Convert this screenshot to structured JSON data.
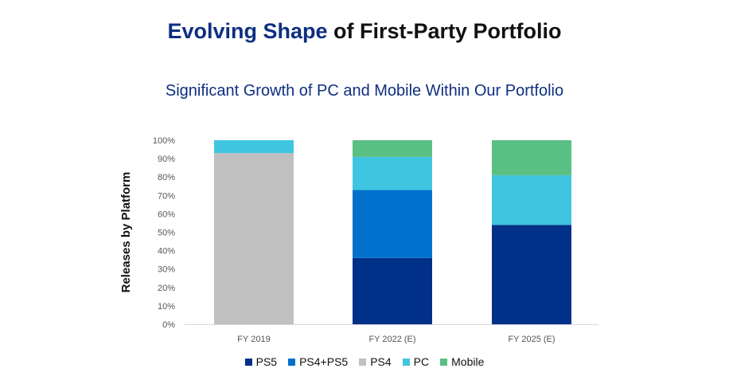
{
  "header": {
    "title_accent": "Evolving Shape",
    "title_rest": " of First-Party Portfolio",
    "subtitle": "Significant Growth of PC and Mobile Within Our Portfolio"
  },
  "chart_data": {
    "type": "bar",
    "stacked": true,
    "title": "Significant Growth of PC and Mobile Within Our Portfolio",
    "ylabel": "Releases by Platform",
    "xlabel": "",
    "ylim": [
      0,
      100
    ],
    "yticks": [
      "0%",
      "10%",
      "20%",
      "30%",
      "40%",
      "50%",
      "60%",
      "70%",
      "80%",
      "90%",
      "100%"
    ],
    "categories": [
      "FY 2019",
      "FY 2022 (E)",
      "FY 2025 (E)"
    ],
    "series": [
      {
        "name": "PS5",
        "color": "#003087",
        "values": [
          0,
          36,
          54
        ]
      },
      {
        "name": "PS4+PS5",
        "color": "#0070cc",
        "values": [
          0,
          37,
          0
        ]
      },
      {
        "name": "PS4",
        "color": "#c0c0c0",
        "values": [
          93,
          0,
          0
        ]
      },
      {
        "name": "PC",
        "color": "#3fc5e0",
        "values": [
          7,
          18,
          27
        ]
      },
      {
        "name": "Mobile",
        "color": "#5abf82",
        "values": [
          0,
          9,
          19
        ]
      }
    ],
    "grid": false,
    "legend_position": "bottom"
  }
}
